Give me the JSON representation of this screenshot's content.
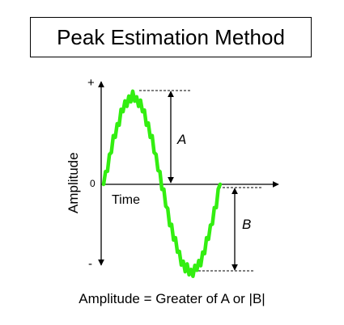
{
  "title": "Peak Estimation Method",
  "axes": {
    "y_label": "Amplitude",
    "x_label": "Time",
    "plus_mark": "+",
    "minus_mark": "-",
    "zero_mark": "0"
  },
  "markers": {
    "a_label": "A",
    "b_label": "B"
  },
  "caption": "Amplitude = Greater of A or |B|",
  "colors": {
    "signal": "#33ee11",
    "ink": "#000000"
  },
  "signal": {
    "description_free": true,
    "shape": "one noisy sine cycle: rises to positive peak, crosses zero, falls to negative trough, returns toward zero"
  }
}
